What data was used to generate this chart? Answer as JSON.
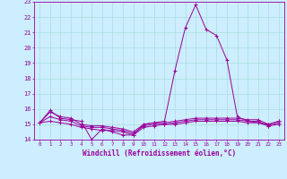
{
  "xlabel": "Windchill (Refroidissement éolien,°C)",
  "bg_color": "#cceeff",
  "line_color": "#990099",
  "grid_color": "#aadddd",
  "x_hours": [
    0,
    1,
    2,
    3,
    4,
    5,
    6,
    7,
    8,
    9,
    10,
    11,
    12,
    13,
    14,
    15,
    16,
    17,
    18,
    19,
    20,
    21,
    22,
    23
  ],
  "series1": [
    15.1,
    15.9,
    15.4,
    15.3,
    15.2,
    14.0,
    14.7,
    14.5,
    14.3,
    14.3,
    15.0,
    15.1,
    15.2,
    18.5,
    21.3,
    22.8,
    21.2,
    20.8,
    19.2,
    15.5,
    15.2,
    15.1,
    15.0,
    15.2
  ],
  "series2": [
    15.1,
    15.8,
    15.5,
    15.4,
    15.0,
    14.9,
    14.9,
    14.8,
    14.7,
    14.5,
    15.0,
    15.1,
    15.1,
    15.2,
    15.3,
    15.4,
    15.4,
    15.4,
    15.4,
    15.4,
    15.3,
    15.3,
    15.0,
    15.2
  ],
  "series3": [
    15.1,
    15.5,
    15.3,
    15.2,
    14.9,
    14.8,
    14.8,
    14.7,
    14.6,
    14.4,
    14.9,
    15.0,
    15.0,
    15.1,
    15.2,
    15.3,
    15.3,
    15.3,
    15.3,
    15.3,
    15.2,
    15.2,
    14.9,
    15.1
  ],
  "series4": [
    15.1,
    15.2,
    15.1,
    15.0,
    14.8,
    14.7,
    14.6,
    14.6,
    14.5,
    14.3,
    14.8,
    14.9,
    15.0,
    15.0,
    15.1,
    15.2,
    15.2,
    15.2,
    15.2,
    15.2,
    15.1,
    15.1,
    14.9,
    15.0
  ],
  "ylim": [
    14,
    23
  ],
  "yticks": [
    14,
    15,
    16,
    17,
    18,
    19,
    20,
    21,
    22,
    23
  ]
}
